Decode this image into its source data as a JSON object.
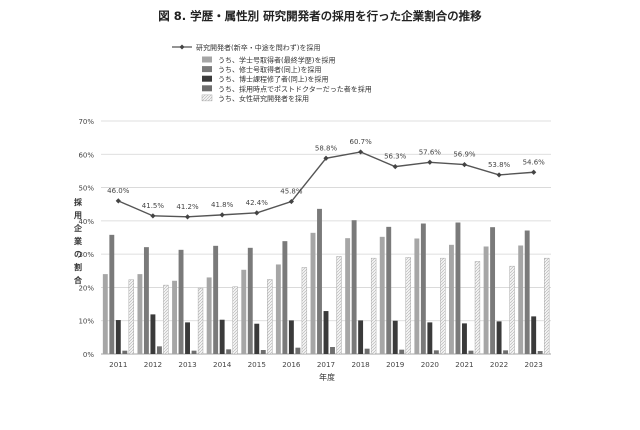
{
  "chart_data": {
    "type": "bar",
    "title": "図 8. 学歴・属性別 研究開発者の採用を行った企業割合の推移",
    "xlabel": "年度",
    "ylabel": "採用企業の割合",
    "ylim": [
      0,
      70
    ],
    "yticks": [
      0,
      10,
      20,
      30,
      40,
      50,
      60,
      70
    ],
    "ytick_suffix": "%",
    "grid": true,
    "legend_position": "top-left",
    "categories": [
      "2011",
      "2012",
      "2013",
      "2014",
      "2015",
      "2016",
      "2017",
      "2018",
      "2019",
      "2020",
      "2021",
      "2022",
      "2023"
    ],
    "line_series": {
      "name": "研究開発者(新卒・中途を問わず)を採用",
      "values": [
        46.0,
        41.5,
        41.2,
        41.8,
        42.4,
        45.8,
        58.8,
        60.7,
        56.3,
        57.6,
        56.9,
        53.8,
        54.6
      ],
      "labels": [
        "46.0%",
        "41.5%",
        "41.2%",
        "41.8%",
        "42.4%",
        "45.8%",
        "58.8%",
        "60.7%",
        "56.3%",
        "57.6%",
        "56.9%",
        "53.8%",
        "54.6%"
      ],
      "color": "#555555"
    },
    "series": [
      {
        "name": "うち、学士号取得者(最終学歴)を採用",
        "values": [
          24.0,
          24.0,
          22.0,
          23.0,
          25.3,
          26.9,
          36.4,
          34.8,
          35.2,
          34.7,
          32.8,
          32.3,
          32.6
        ],
        "color": "#a6a6a6"
      },
      {
        "name": "うち、修士号取得者(同上)を採用",
        "values": [
          35.8,
          32.1,
          31.3,
          32.5,
          31.9,
          33.9,
          43.6,
          40.2,
          38.2,
          39.2,
          39.5,
          38.1,
          37.1
        ],
        "color": "#7a7a7a"
      },
      {
        "name": "うち、博士課程修了者(同上)を採用",
        "values": [
          10.2,
          11.9,
          9.5,
          10.3,
          9.1,
          10.1,
          12.9,
          10.1,
          10.0,
          9.5,
          9.2,
          9.8,
          11.3
        ],
        "color": "#3a3a3a"
      },
      {
        "name": "うち、採用時点でポストドクターだった者を採用",
        "values": [
          1.0,
          2.3,
          1.0,
          1.4,
          1.2,
          1.9,
          2.1,
          1.6,
          1.3,
          1.1,
          1.0,
          1.1,
          0.9
        ],
        "color": "#6e6e6e"
      },
      {
        "name": "うち、女性研究開発者を採用",
        "values": [
          22.3,
          20.7,
          19.8,
          20.2,
          22.4,
          26.0,
          29.3,
          28.8,
          29.0,
          28.8,
          27.8,
          26.4,
          28.8
        ],
        "color": "#e6e6e6"
      }
    ]
  }
}
